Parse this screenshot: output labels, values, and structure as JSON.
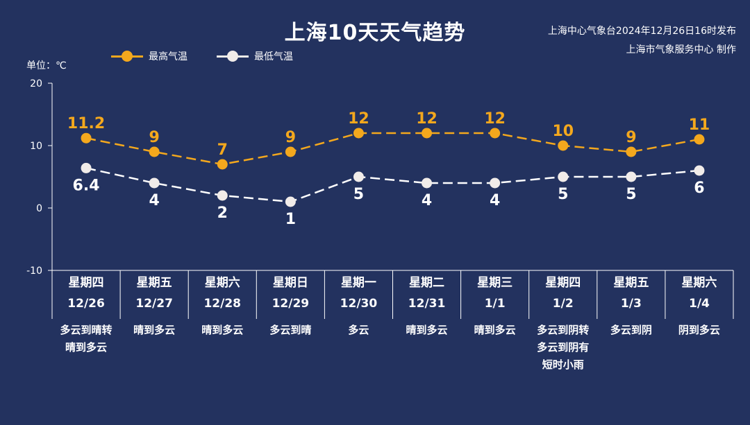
{
  "header": {
    "title": "上海10天天气趋势",
    "publisher_line1": "上海中心气象台2024年12月26日16时发布",
    "publisher_line2": "上海市气象服务中心 制作",
    "unit_label": "单位：℃"
  },
  "legend": {
    "max_label": "最高气温",
    "min_label": "最低气温"
  },
  "colors": {
    "background": "#23325f",
    "max_series": "#f4a81d",
    "min_series": "#ffffff",
    "axis": "#ffffff"
  },
  "chart_data": {
    "type": "line",
    "title": "上海10天天气趋势",
    "ylabel": "单位：℃",
    "ylim": [
      -10,
      20
    ],
    "yticks": [
      -10,
      0,
      10,
      20
    ],
    "grid": false,
    "legend_position": "top-left",
    "categories": [
      "星期四 12/26",
      "星期五 12/27",
      "星期六 12/28",
      "星期日 12/29",
      "星期一 12/30",
      "星期二 12/31",
      "星期三 1/1",
      "星期四 1/2",
      "星期五 1/3",
      "星期六 1/4"
    ],
    "series": [
      {
        "name": "最高气温",
        "values": [
          11.2,
          9,
          7,
          9,
          12,
          12,
          12,
          10,
          9,
          11
        ],
        "labels": [
          "11.2",
          "9",
          "7",
          "9",
          "12",
          "12",
          "12",
          "10",
          "9",
          "11"
        ]
      },
      {
        "name": "最低气温",
        "values": [
          6.4,
          4,
          2,
          1,
          5,
          4,
          4,
          5,
          5,
          6
        ],
        "labels": [
          "6.4",
          "4",
          "2",
          "1",
          "5",
          "4",
          "4",
          "5",
          "5",
          "6"
        ]
      }
    ]
  },
  "days": [
    {
      "weekday": "星期四",
      "date": "12/26",
      "weather": "多云到晴转\n晴到多云"
    },
    {
      "weekday": "星期五",
      "date": "12/27",
      "weather": "晴到多云"
    },
    {
      "weekday": "星期六",
      "date": "12/28",
      "weather": "晴到多云"
    },
    {
      "weekday": "星期日",
      "date": "12/29",
      "weather": "多云到晴"
    },
    {
      "weekday": "星期一",
      "date": "12/30",
      "weather": "多云"
    },
    {
      "weekday": "星期二",
      "date": "12/31",
      "weather": "晴到多云"
    },
    {
      "weekday": "星期三",
      "date": "1/1",
      "weather": "晴到多云"
    },
    {
      "weekday": "星期四",
      "date": "1/2",
      "weather": "多云到阴转\n多云到阴有\n短时小雨"
    },
    {
      "weekday": "星期五",
      "date": "1/3",
      "weather": "多云到阴"
    },
    {
      "weekday": "星期六",
      "date": "1/4",
      "weather": "阴到多云"
    }
  ]
}
